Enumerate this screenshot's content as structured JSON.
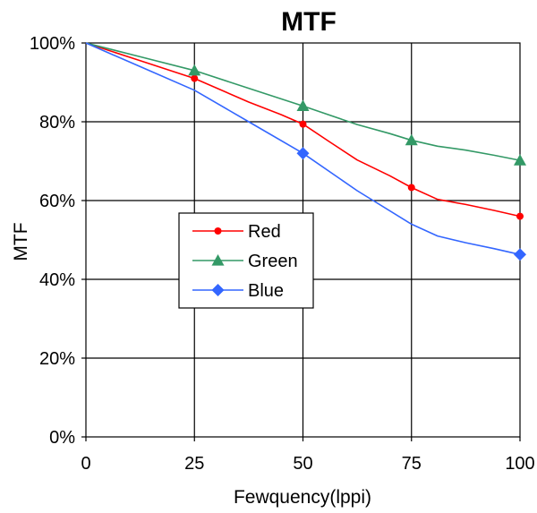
{
  "chart_data": {
    "type": "line",
    "title": "MTF",
    "xlabel": "Fewquency(lppi)",
    "ylabel": "MTF",
    "xlim": [
      0,
      100
    ],
    "ylim": [
      0,
      100
    ],
    "xticks": [
      "0",
      "25",
      "50",
      "75",
      "100"
    ],
    "yticks": [
      "0%",
      "20%",
      "40%",
      "60%",
      "80%",
      "100%"
    ],
    "grid": true,
    "legend_position": "center-left",
    "series": [
      {
        "name": "Red",
        "color": "#ff0000",
        "marker": "circle",
        "x": [
          0,
          12.5,
          25,
          37.5,
          45,
          50,
          56,
          62.5,
          70,
          75,
          81,
          87.5,
          94,
          100
        ],
        "y": [
          100,
          95.5,
          91,
          85,
          81.8,
          79.4,
          75,
          70.3,
          66.3,
          63.3,
          60.3,
          59,
          57.5,
          56
        ]
      },
      {
        "name": "Green",
        "color": "#339966",
        "marker": "triangle",
        "x": [
          0,
          12.5,
          25,
          37.5,
          50,
          62.5,
          70,
          75,
          81,
          87.5,
          94,
          100
        ],
        "y": [
          100,
          96.5,
          93,
          88.5,
          84,
          79.3,
          77,
          75.3,
          73.8,
          72.8,
          71.5,
          70.2
        ]
      },
      {
        "name": "Blue",
        "color": "#3366ff",
        "marker": "diamond",
        "x": [
          0,
          12.5,
          25,
          37.5,
          50,
          62.5,
          75,
          81,
          87.5,
          94,
          100
        ],
        "y": [
          100,
          94,
          88,
          80,
          72,
          62.5,
          54,
          51,
          49.3,
          47.8,
          46.3
        ]
      }
    ],
    "marker_points": {
      "Red": [
        [
          25,
          91
        ],
        [
          50,
          79.4
        ],
        [
          75,
          63.3
        ],
        [
          100,
          56
        ]
      ],
      "Green": [
        [
          25,
          93
        ],
        [
          50,
          84
        ],
        [
          75,
          75.3
        ],
        [
          100,
          70.2
        ]
      ],
      "Blue": [
        [
          50,
          72
        ],
        [
          100,
          46.3
        ]
      ]
    }
  }
}
